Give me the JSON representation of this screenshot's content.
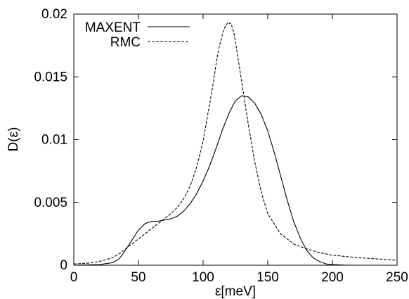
{
  "chart_data": {
    "type": "line",
    "title": "",
    "xlabel": "ε[meV]",
    "ylabel": "D(ε)",
    "xlim": [
      0,
      250
    ],
    "ylim": [
      0,
      0.02
    ],
    "xticks": [
      0,
      50,
      100,
      150,
      200,
      250
    ],
    "xtick_labels": [
      "0",
      "50",
      "100",
      "150",
      "200",
      "250"
    ],
    "yticks": [
      0,
      0.005,
      0.01,
      0.015,
      0.02
    ],
    "ytick_labels": [
      "0",
      "0.005",
      "0.01",
      "0.015",
      "0.02"
    ],
    "grid": false,
    "legend_position": "top-left",
    "series": [
      {
        "name": "MAXENT",
        "style": "solid",
        "color": "#000000",
        "x": [
          0,
          20,
          30,
          35,
          40,
          45,
          50,
          55,
          60,
          65,
          70,
          75,
          80,
          85,
          90,
          95,
          100,
          105,
          110,
          115,
          120,
          125,
          130,
          135,
          140,
          145,
          150,
          155,
          160,
          165,
          170,
          175,
          180,
          185,
          190,
          195,
          200,
          210,
          220
        ],
        "y": [
          0,
          5e-05,
          0.0002,
          0.0005,
          0.0012,
          0.002,
          0.0028,
          0.0033,
          0.0035,
          0.0035,
          0.0036,
          0.0037,
          0.0039,
          0.0043,
          0.0049,
          0.0057,
          0.0067,
          0.0079,
          0.0093,
          0.0108,
          0.0121,
          0.0131,
          0.0135,
          0.0134,
          0.0129,
          0.012,
          0.0107,
          0.009,
          0.0071,
          0.0052,
          0.0035,
          0.0022,
          0.0012,
          0.0006,
          0.0003,
          0.0001,
          5e-05,
          1e-05,
          0
        ]
      },
      {
        "name": "RMC",
        "style": "dashed",
        "color": "#000000",
        "x": [
          0,
          10,
          20,
          30,
          35,
          40,
          45,
          50,
          55,
          60,
          65,
          70,
          75,
          80,
          85,
          90,
          95,
          100,
          105,
          108,
          110,
          112,
          115,
          117,
          119,
          120,
          121,
          122,
          123,
          124,
          125,
          127,
          130,
          135,
          140,
          145,
          150,
          160,
          170,
          180,
          190,
          200,
          220,
          250
        ],
        "y": [
          0.0001,
          0.00015,
          0.0003,
          0.0006,
          0.0009,
          0.0013,
          0.0017,
          0.0021,
          0.0025,
          0.0029,
          0.0033,
          0.0037,
          0.0041,
          0.0046,
          0.0053,
          0.0063,
          0.0078,
          0.0099,
          0.0128,
          0.0146,
          0.016,
          0.0172,
          0.0184,
          0.019,
          0.0193,
          0.0192,
          0.0193,
          0.0191,
          0.0188,
          0.0184,
          0.0178,
          0.0165,
          0.0145,
          0.0112,
          0.0082,
          0.0058,
          0.0041,
          0.0025,
          0.0017,
          0.0013,
          0.001,
          0.0008,
          0.0006,
          0.0004
        ]
      }
    ]
  }
}
